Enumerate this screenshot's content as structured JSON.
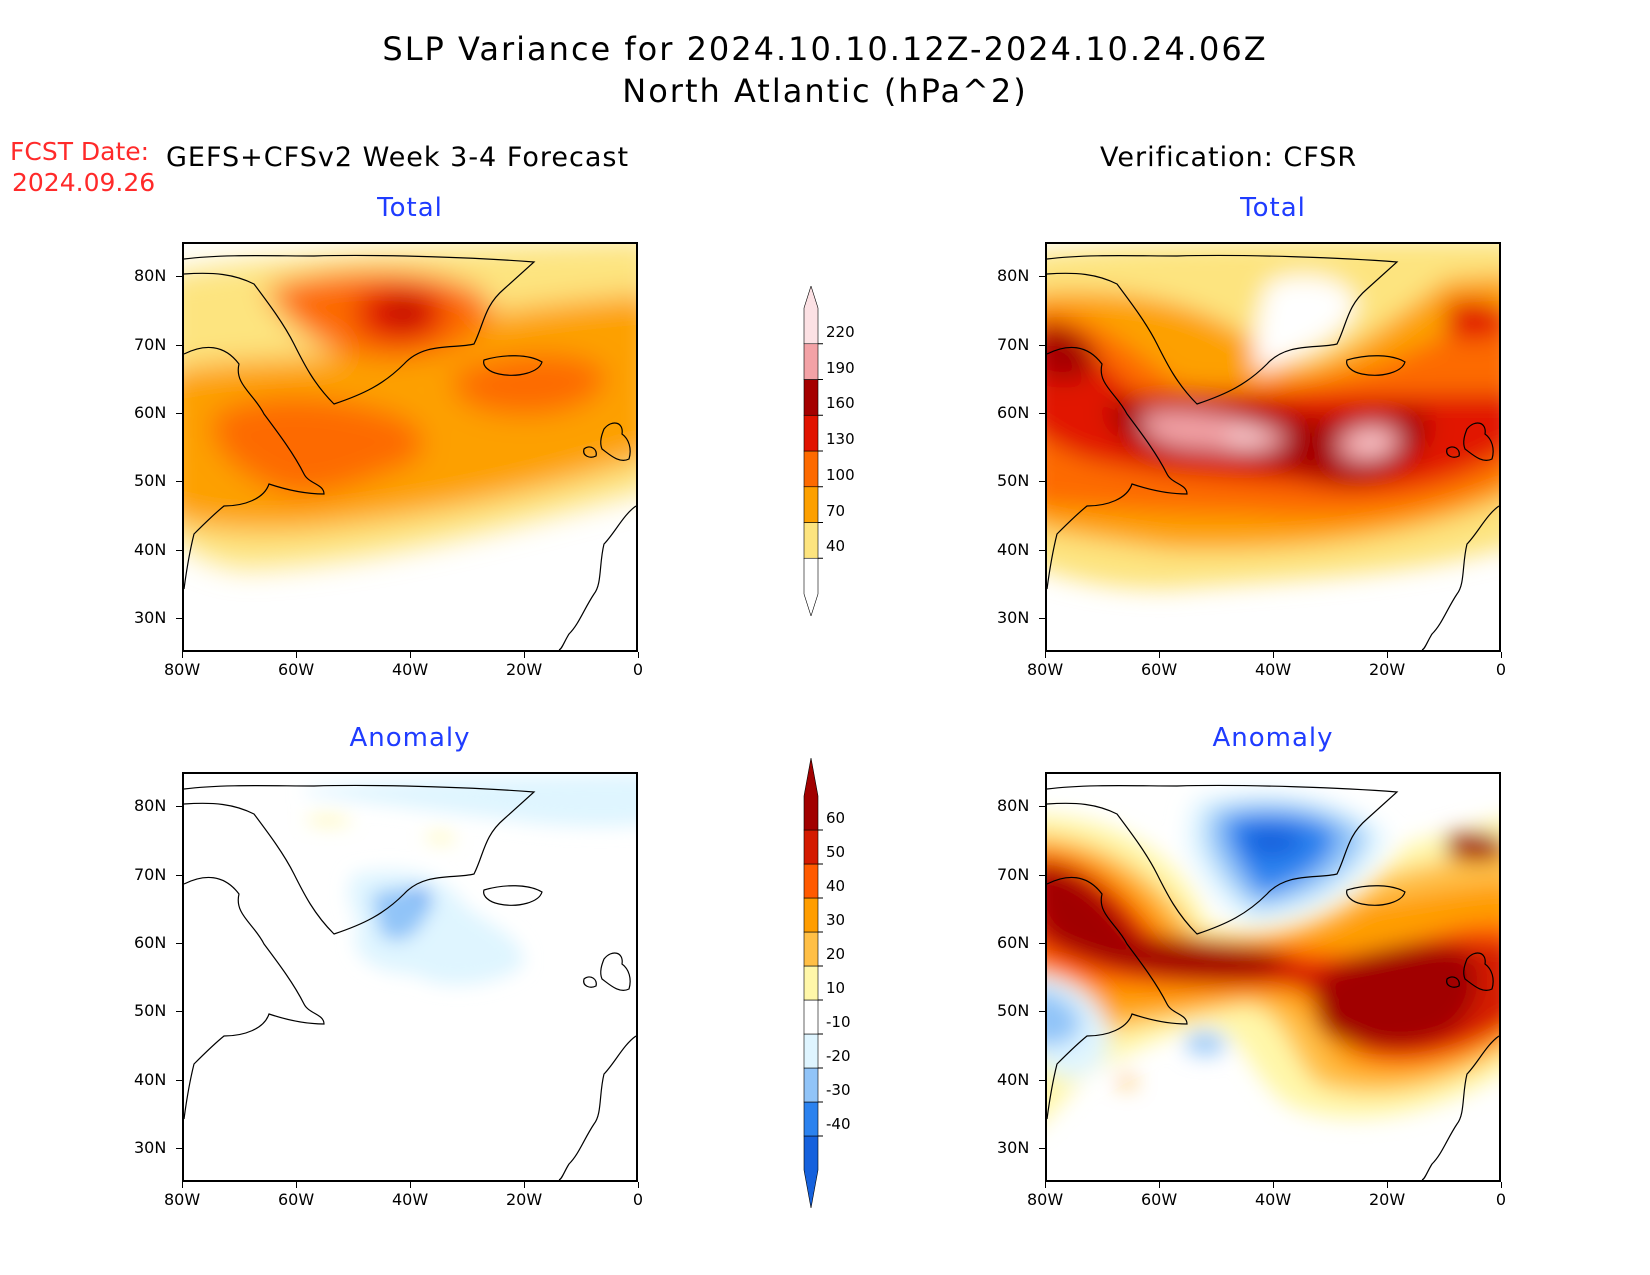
{
  "header": {
    "title_line1": "SLP Variance for 2024.10.10.12Z-2024.10.24.06Z",
    "title_line2": "North Atlantic (hPa^2)",
    "fcst_date_label": "FCST Date:",
    "fcst_date_value": "2024.09.26",
    "left_column_title": "GEFS+CFSv2 Week 3-4 Forecast",
    "right_column_title": "Verification: CFSR"
  },
  "panels": {
    "forecast_total_title": "Total",
    "verification_total_title": "Total",
    "forecast_anomaly_title": "Anomaly",
    "verification_anomaly_title": "Anomaly"
  },
  "axes": {
    "lat_ticks": [
      "80N",
      "70N",
      "60N",
      "50N",
      "40N",
      "30N"
    ],
    "lat_values": [
      80,
      70,
      60,
      50,
      40,
      30
    ],
    "lon_ticks": [
      "80W",
      "60W",
      "40W",
      "20W",
      "0"
    ],
    "lon_values": [
      -80,
      -60,
      -40,
      -20,
      0
    ],
    "lat_range": [
      25,
      85
    ],
    "lon_range": [
      -80,
      0
    ]
  },
  "colorbars": {
    "total": {
      "levels": [
        "40",
        "70",
        "100",
        "130",
        "160",
        "190",
        "220"
      ],
      "colors": [
        "#fde47f",
        "#fda000",
        "#fd6a00",
        "#e11300",
        "#a50000",
        "#f3a2a6",
        "#fce1e4"
      ]
    },
    "anomaly": {
      "levels": [
        "-40",
        "-30",
        "-20",
        "-10",
        "10",
        "20",
        "30",
        "40",
        "50",
        "60"
      ],
      "colors": [
        "#1561dd",
        "#2b82ef",
        "#91c4f8",
        "#dff5ff",
        "#ffffff",
        "#fff7a9",
        "#ffbf46",
        "#ff9d00",
        "#ff5a00",
        "#d41a00",
        "#a10000"
      ]
    }
  },
  "chart_data": [
    {
      "type": "heatmap",
      "panel": "forecast-total",
      "description_levels": [
        40,
        70,
        100,
        130,
        160
      ],
      "features": [
        {
          "region": "broad band 45N-80N",
          "value": 55
        },
        {
          "region": "core 40N-72N",
          "value": 85
        },
        {
          "region": "Greenland max near 74N 40W",
          "value": 170
        },
        {
          "region": "Labrador Sea / Newfoundland 47N-58N 70W-45W",
          "value": 115
        },
        {
          "region": "south of Iceland 60N-66N 30W-15W",
          "value": 110
        }
      ]
    },
    {
      "type": "heatmap",
      "panel": "verification-total",
      "description_levels": [
        40,
        70,
        100,
        130,
        160,
        190,
        220
      ],
      "features": [
        {
          "region": "storm track 50N-60N 65W-20W",
          "value": 170
        },
        {
          "region": "max near 54N 50W",
          "value": 225
        },
        {
          "region": "max near 52N 25W",
          "value": 220
        },
        {
          "region": "Baffin Bay near 67N 77W",
          "value": 160
        },
        {
          "region": "near 70N 5W",
          "value": 145
        }
      ]
    },
    {
      "type": "heatmap",
      "panel": "forecast-anomaly",
      "features": [
        {
          "region": "south of Greenland 55N-68N 45W-20W",
          "value": -15
        },
        {
          "region": "near 65N 38W",
          "value": -35
        },
        {
          "region": "Greenland 77N",
          "value": 15
        }
      ]
    },
    {
      "type": "heatmap",
      "panel": "verification-anomaly",
      "features": [
        {
          "region": "Greenland / Denmark Strait 63N-78N 50W-25W",
          "value": -35
        },
        {
          "region": "Labrador Sea 53N-60N 65W-45W",
          "value": 60
        },
        {
          "region": "mid-Atlantic 42N-57N 35W-10W",
          "value": 60
        },
        {
          "region": "Baffin 67N 75W",
          "value": 60
        },
        {
          "region": "east 71N 3W",
          "value": 55
        },
        {
          "region": "off US east coast 43N-50N 80W-75W",
          "value": -25
        }
      ]
    }
  ]
}
